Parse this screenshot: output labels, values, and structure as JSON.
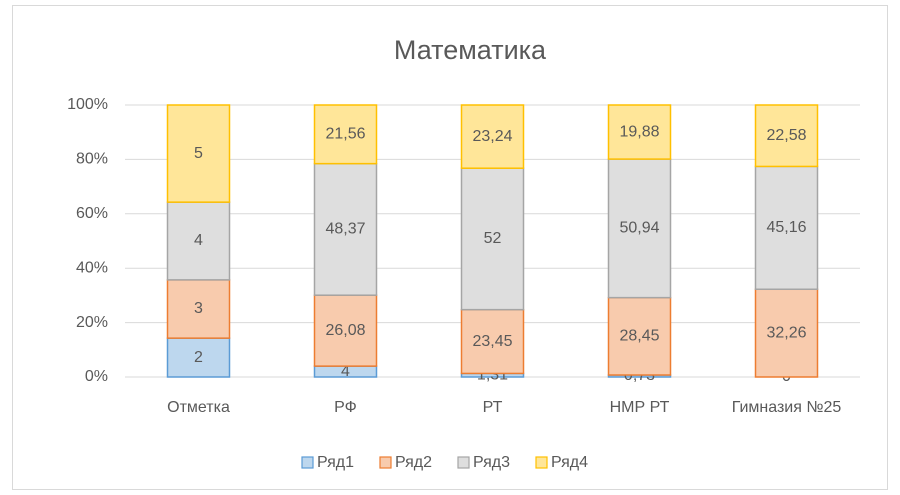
{
  "chart_data": {
    "type": "bar",
    "stacking": "percent",
    "title": "Математика",
    "categories": [
      "Отметка",
      "РФ",
      "РТ",
      "НМР РТ",
      "Гимназия №25"
    ],
    "series": [
      {
        "name": "Ряд1",
        "color": "#bdd7ee",
        "edge_color": "#5b9bd5",
        "values": [
          2,
          4,
          1.31,
          0.73,
          0
        ],
        "value_labels": [
          "2",
          "4",
          "1,31",
          "0,73",
          "0"
        ]
      },
      {
        "name": "Ряд2",
        "color": "#f8cbad",
        "edge_color": "#ed7d31",
        "values": [
          3,
          26.08,
          23.45,
          28.45,
          32.26
        ],
        "value_labels": [
          "3",
          "26,08",
          "23,45",
          "28,45",
          "32,26"
        ]
      },
      {
        "name": "Ряд3",
        "color": "#dedede",
        "edge_color": "#a5a5a5",
        "values": [
          4,
          48.37,
          52,
          50.94,
          45.16
        ],
        "value_labels": [
          "4",
          "48,37",
          "52",
          "50,94",
          "45,16"
        ]
      },
      {
        "name": "Ряд4",
        "color": "#ffe699",
        "edge_color": "#ffc000",
        "values": [
          5,
          21.56,
          23.24,
          19.88,
          22.58
        ],
        "value_labels": [
          "5",
          "21,56",
          "23,24",
          "19,88",
          "22,58"
        ]
      }
    ],
    "ylim": [
      0,
      100
    ],
    "yticks": [
      {
        "value": 0,
        "label": "0%"
      },
      {
        "value": 20,
        "label": "20%"
      },
      {
        "value": 40,
        "label": "40%"
      },
      {
        "value": 60,
        "label": "60%"
      },
      {
        "value": 80,
        "label": "80%"
      },
      {
        "value": 100,
        "label": "100%"
      }
    ],
    "grid": true,
    "legend": "bottom"
  }
}
